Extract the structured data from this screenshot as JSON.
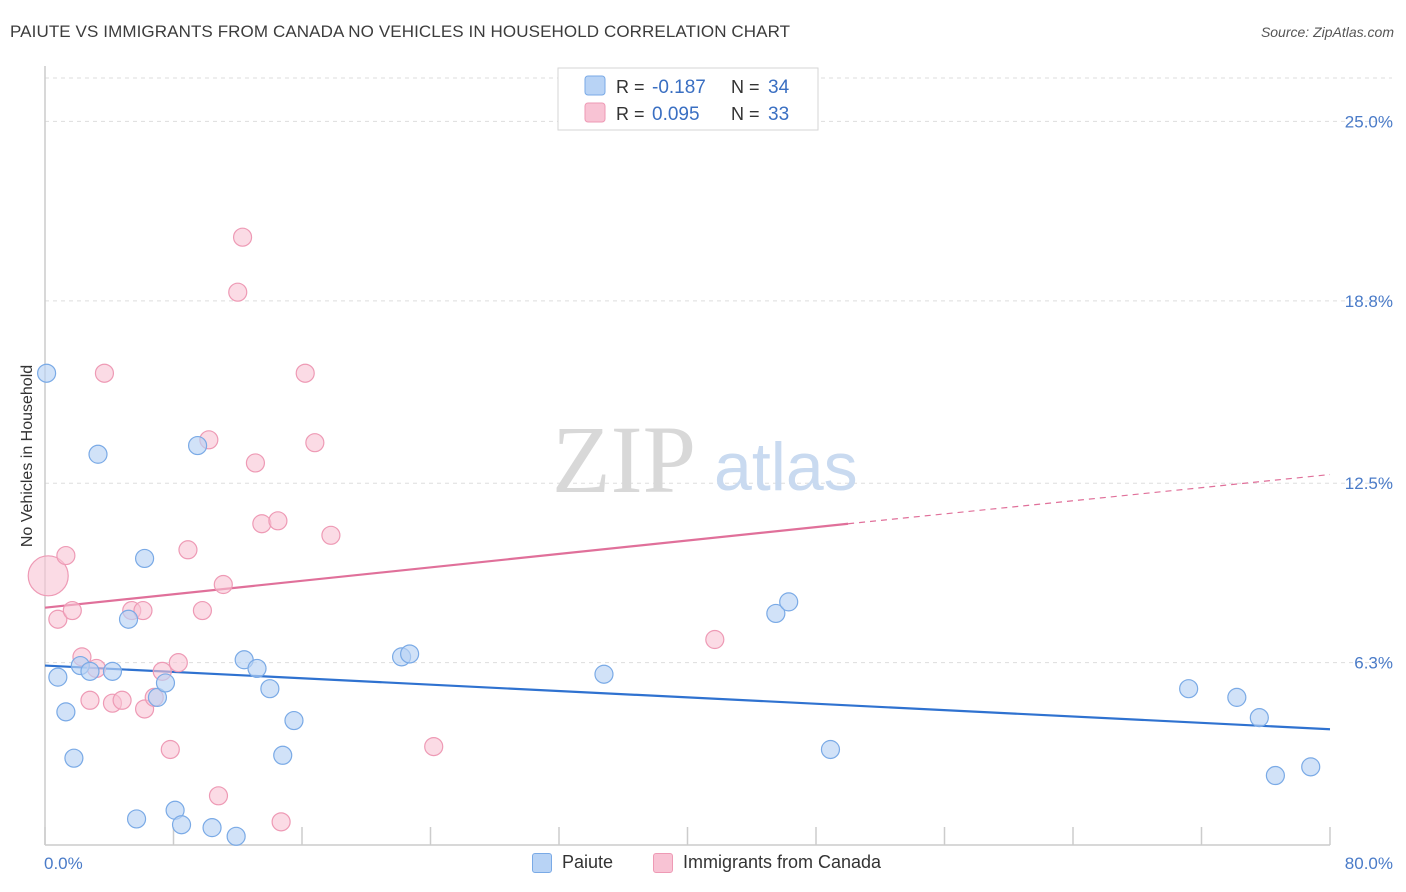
{
  "header": {
    "title": "PAIUTE VS IMMIGRANTS FROM CANADA NO VEHICLES IN HOUSEHOLD CORRELATION CHART",
    "source": "Source: ZipAtlas.com"
  },
  "watermark": {
    "zip": "ZIP",
    "atlas": "atlas"
  },
  "legend_box": {
    "rows": [
      {
        "r_label": "R =",
        "r_value": "-0.187",
        "n_label": "N =",
        "n_value": "34"
      },
      {
        "r_label": "R =",
        "r_value": "0.095",
        "n_label": "N =",
        "n_value": "33"
      }
    ]
  },
  "bottom_legend": {
    "items": [
      {
        "label": "Paiute"
      },
      {
        "label": "Immigrants from Canada"
      }
    ]
  },
  "colors": {
    "blue_fill": "#b8d3f5",
    "blue_stroke": "#7aaae6",
    "blue_line": "#2f72d0",
    "pink_fill": "#f8c3d4",
    "pink_stroke": "#ee9ab5",
    "pink_line": "#e0709a",
    "grid": "#dddddd",
    "tick_label": "#4a7bc8"
  },
  "chart_data": {
    "type": "scatter",
    "title": "PAIUTE VS IMMIGRANTS FROM CANADA NO VEHICLES IN HOUSEHOLD CORRELATION CHART",
    "xlabel": "",
    "ylabel": "No Vehicles in Household",
    "xlim": [
      0,
      80
    ],
    "ylim": [
      0,
      26.5
    ],
    "x_tick_labels": [
      "0.0%",
      "80.0%"
    ],
    "y_ticks": [
      6.3,
      12.5,
      18.8,
      25.0
    ],
    "y_tick_labels": [
      "6.3%",
      "12.5%",
      "18.8%",
      "25.0%"
    ],
    "grid": "horizontal dashed",
    "legend": "top-center",
    "series": [
      {
        "name": "Paiute",
        "color": "#b8d3f5",
        "r": "-0.187",
        "n": "34",
        "trend": {
          "x": [
            0,
            80
          ],
          "y": [
            6.2,
            4.0
          ]
        },
        "points": [
          [
            0.1,
            16.3
          ],
          [
            0.8,
            5.8
          ],
          [
            1.3,
            4.6
          ],
          [
            1.8,
            3.0
          ],
          [
            2.2,
            6.2
          ],
          [
            2.8,
            6.0
          ],
          [
            3.3,
            13.5
          ],
          [
            4.2,
            6.0
          ],
          [
            5.2,
            7.8
          ],
          [
            5.7,
            0.9
          ],
          [
            6.2,
            9.9
          ],
          [
            7.0,
            5.1
          ],
          [
            7.5,
            5.6
          ],
          [
            8.1,
            1.2
          ],
          [
            8.5,
            0.7
          ],
          [
            9.5,
            13.8
          ],
          [
            10.4,
            0.6
          ],
          [
            11.9,
            0.3
          ],
          [
            12.4,
            6.4
          ],
          [
            13.2,
            6.1
          ],
          [
            14.0,
            5.4
          ],
          [
            14.8,
            3.1
          ],
          [
            15.5,
            4.3
          ],
          [
            22.2,
            6.5
          ],
          [
            22.7,
            6.6
          ],
          [
            34.8,
            5.9
          ],
          [
            45.5,
            8.0
          ],
          [
            46.3,
            8.4
          ],
          [
            48.9,
            3.3
          ],
          [
            71.2,
            5.4
          ],
          [
            74.2,
            5.1
          ],
          [
            75.6,
            4.4
          ],
          [
            76.6,
            2.4
          ],
          [
            78.8,
            2.7
          ]
        ]
      },
      {
        "name": "Immigrants from Canada",
        "color": "#f8c3d4",
        "r": "0.095",
        "n": "33",
        "trend": {
          "x": [
            0,
            50
          ],
          "y": [
            8.2,
            11.1
          ],
          "dashed_extension": {
            "x": [
              50,
              80
            ],
            "y": [
              11.1,
              12.8
            ]
          }
        },
        "points": [
          [
            0.2,
            9.3
          ],
          [
            0.8,
            7.8
          ],
          [
            1.3,
            10.0
          ],
          [
            1.7,
            8.1
          ],
          [
            2.3,
            6.5
          ],
          [
            2.8,
            5.0
          ],
          [
            3.2,
            6.1
          ],
          [
            3.7,
            16.3
          ],
          [
            4.2,
            4.9
          ],
          [
            4.8,
            5.0
          ],
          [
            5.4,
            8.1
          ],
          [
            6.1,
            8.1
          ],
          [
            6.2,
            4.7
          ],
          [
            6.8,
            5.1
          ],
          [
            7.3,
            6.0
          ],
          [
            7.8,
            3.3
          ],
          [
            8.3,
            6.3
          ],
          [
            8.9,
            10.2
          ],
          [
            9.8,
            8.1
          ],
          [
            10.2,
            14.0
          ],
          [
            10.8,
            1.7
          ],
          [
            11.1,
            9.0
          ],
          [
            12.0,
            19.1
          ],
          [
            12.3,
            21.0
          ],
          [
            13.1,
            13.2
          ],
          [
            13.5,
            11.1
          ],
          [
            14.5,
            11.2
          ],
          [
            14.7,
            0.8
          ],
          [
            16.2,
            16.3
          ],
          [
            16.8,
            13.9
          ],
          [
            17.8,
            10.7
          ],
          [
            24.2,
            3.4
          ],
          [
            41.7,
            7.1
          ]
        ]
      }
    ]
  }
}
